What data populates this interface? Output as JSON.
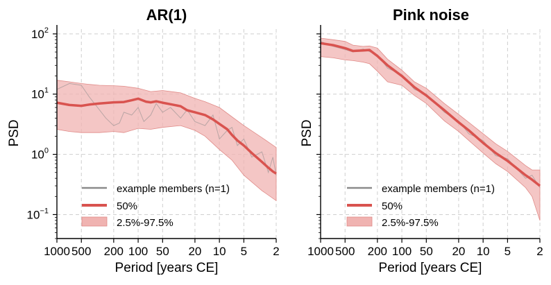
{
  "chart_data": [
    {
      "type": "line",
      "title": "AR(1)",
      "xlabel": "Period [years CE]",
      "ylabel": "PSD",
      "xscale": "log-reversed",
      "yscale": "log",
      "xlim": [
        1000,
        2
      ],
      "ylim": [
        0.04,
        120
      ],
      "xticks": [
        1000,
        500,
        200,
        100,
        50,
        20,
        10,
        5,
        2
      ],
      "xtick_labels": [
        "1000",
        "500",
        "200",
        "100",
        "50",
        "20",
        "10",
        "5",
        "2"
      ],
      "yticks": [
        0.1,
        1,
        10,
        100
      ],
      "ytick_base": "10",
      "ytick_exponents": [
        "−1",
        "0",
        "1",
        "2"
      ],
      "grid": true,
      "legend_position": "bottom-left",
      "legend": [
        "example members (n=1)",
        "50%",
        "2.5%-97.5%"
      ],
      "colors": {
        "median": "#d9534f",
        "band": "#f0b3b1",
        "member": "#8a8a8a"
      },
      "series": [
        {
          "name": "50%",
          "x": [
            1000,
            700,
            500,
            400,
            300,
            200,
            150,
            120,
            100,
            80,
            70,
            60,
            50,
            40,
            30,
            25,
            20,
            15,
            12,
            10,
            8,
            7,
            6,
            5,
            4,
            3,
            2.5,
            2.2,
            2
          ],
          "y": [
            7.2,
            6.6,
            6.4,
            6.7,
            7.0,
            7.3,
            7.4,
            7.9,
            8.4,
            7.5,
            7.3,
            7.6,
            7.2,
            6.8,
            6.3,
            5.4,
            5.0,
            4.5,
            3.8,
            3.2,
            2.6,
            2.1,
            1.7,
            1.4,
            1.05,
            0.75,
            0.6,
            0.52,
            0.48
          ]
        },
        {
          "name": "example members (n=1)",
          "x": [
            1000,
            700,
            500,
            400,
            300,
            250,
            200,
            170,
            150,
            120,
            100,
            85,
            70,
            60,
            50,
            40,
            30,
            25,
            20,
            15,
            12,
            10,
            8,
            7,
            6,
            5,
            4,
            3,
            2.5,
            2.2,
            2
          ],
          "y": [
            12,
            15,
            14,
            9,
            5.5,
            4,
            3,
            3.3,
            5,
            4.5,
            6,
            3.5,
            4.5,
            7,
            5,
            6,
            4,
            5.5,
            3.5,
            3,
            4.5,
            1.8,
            2.5,
            2.8,
            1.4,
            1.8,
            0.9,
            1.1,
            0.5,
            0.9,
            0.45
          ]
        },
        {
          "name": "2.5%-97.5%",
          "x": [
            1000,
            700,
            500,
            400,
            300,
            200,
            150,
            100,
            70,
            50,
            30,
            20,
            15,
            10,
            7,
            5,
            3,
            2
          ],
          "lower": [
            2.6,
            2.4,
            2.3,
            2.3,
            2.3,
            2.4,
            2.3,
            2.7,
            2.6,
            2.8,
            3.0,
            2.5,
            2.0,
            1.2,
            0.8,
            0.45,
            0.25,
            0.17
          ],
          "upper": [
            17,
            16,
            15,
            14.5,
            14,
            13.8,
            13.5,
            12.5,
            11,
            11.5,
            10.5,
            8.5,
            7.5,
            6.0,
            4.2,
            3.0,
            1.9,
            1.3
          ]
        }
      ]
    },
    {
      "type": "line",
      "title": "Pink noise",
      "xlabel": "Period [years CE]",
      "ylabel": "PSD",
      "xscale": "log-reversed",
      "yscale": "log",
      "xlim": [
        1000,
        2
      ],
      "ylim": [
        0.04,
        120
      ],
      "xticks": [
        1000,
        500,
        200,
        100,
        50,
        20,
        10,
        5,
        2
      ],
      "xtick_labels": [
        "1000",
        "500",
        "200",
        "100",
        "50",
        "20",
        "10",
        "5",
        "2"
      ],
      "yticks": [
        0.1,
        1,
        10,
        100
      ],
      "grid": true,
      "legend_position": "bottom-left",
      "legend": [
        "example members (n=1)",
        "50%",
        "2.5%-97.5%"
      ],
      "colors": {
        "median": "#d9534f",
        "band": "#f0b3b1",
        "member": "#8a8a8a"
      },
      "series": [
        {
          "name": "50%",
          "x": [
            1000,
            700,
            500,
            400,
            300,
            250,
            200,
            150,
            100,
            70,
            50,
            30,
            20,
            15,
            10,
            7,
            5,
            3,
            2.5,
            2
          ],
          "y": [
            70,
            65,
            58,
            52,
            53,
            54,
            43,
            30,
            20,
            13,
            9.5,
            5.4,
            3.4,
            2.5,
            1.55,
            1.05,
            0.78,
            0.45,
            0.38,
            0.3
          ]
        },
        {
          "name": "example members (n=1)",
          "x": [
            1000,
            700,
            500,
            400,
            300,
            200,
            150,
            100,
            70,
            50,
            30,
            20,
            15,
            10,
            7,
            5,
            3,
            2.5,
            2
          ],
          "y": [
            75,
            62,
            55,
            50,
            56,
            45,
            27,
            21,
            12,
            10,
            5,
            3.6,
            2.2,
            1.7,
            0.95,
            0.85,
            0.4,
            0.45,
            0.28
          ]
        },
        {
          "name": "2.5%-97.5%",
          "x": [
            1000,
            700,
            500,
            400,
            300,
            250,
            200,
            150,
            100,
            70,
            50,
            30,
            20,
            15,
            10,
            7,
            5,
            3,
            2.5,
            2
          ],
          "lower": [
            42,
            40,
            37,
            36,
            34,
            32,
            24,
            16,
            14,
            9.5,
            7.0,
            3.6,
            2.4,
            1.7,
            1.05,
            0.7,
            0.52,
            0.28,
            0.2,
            0.08
          ],
          "upper": [
            85,
            80,
            75,
            65,
            62,
            63,
            58,
            38,
            25,
            16,
            12.5,
            7.0,
            4.6,
            3.4,
            2.2,
            1.5,
            1.12,
            0.65,
            0.55,
            0.55
          ]
        }
      ]
    }
  ]
}
